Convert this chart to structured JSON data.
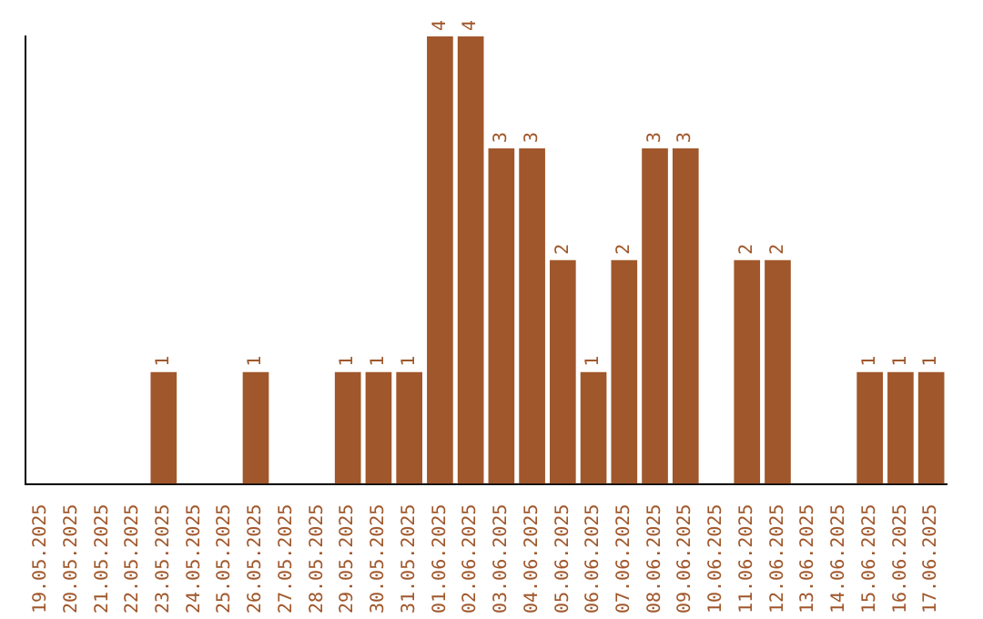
{
  "chart_data": {
    "type": "bar",
    "categories": [
      "19.05.2025",
      "20.05.2025",
      "21.05.2025",
      "22.05.2025",
      "23.05.2025",
      "24.05.2025",
      "25.05.2025",
      "26.05.2025",
      "27.05.2025",
      "28.05.2025",
      "29.05.2025",
      "30.05.2025",
      "31.05.2025",
      "01.06.2025",
      "02.06.2025",
      "03.06.2025",
      "04.06.2025",
      "05.06.2025",
      "06.06.2025",
      "07.06.2025",
      "08.06.2025",
      "09.06.2025",
      "10.06.2025",
      "11.06.2025",
      "12.06.2025",
      "13.06.2025",
      "14.06.2025",
      "15.06.2025",
      "16.06.2025",
      "17.06.2025"
    ],
    "values": [
      0,
      0,
      0,
      0,
      1,
      0,
      0,
      1,
      0,
      0,
      1,
      1,
      1,
      4,
      4,
      3,
      3,
      2,
      1,
      2,
      3,
      3,
      0,
      2,
      2,
      0,
      0,
      1,
      1,
      1
    ],
    "value_labels": [
      null,
      null,
      null,
      null,
      "1",
      null,
      null,
      "1",
      null,
      null,
      "1",
      "1",
      "1",
      "4",
      "4",
      "3",
      "3",
      "2",
      "1",
      "2",
      "3",
      "3",
      null,
      "2",
      "2",
      null,
      null,
      "1",
      "1",
      "1"
    ],
    "color": "#a0572b",
    "grid": false,
    "legend": false,
    "tick_labels": "x"
  }
}
